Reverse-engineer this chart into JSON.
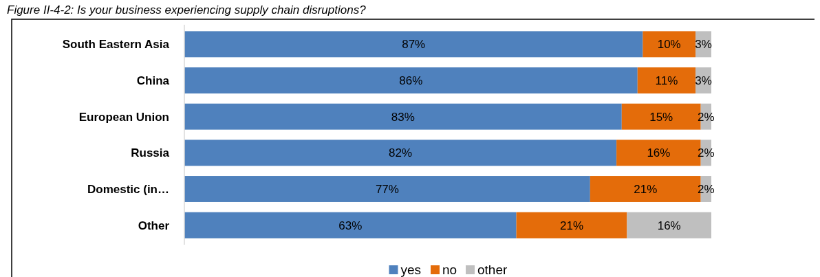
{
  "chart_data": {
    "type": "bar",
    "orientation": "horizontal",
    "stacked": true,
    "title": "Figure II-4-2: Is your business experiencing supply chain disruptions?",
    "categories": [
      "South Eastern Asia",
      "China",
      "European Union",
      "Russia",
      "Domestic (in…",
      "Other"
    ],
    "xlim": [
      0,
      100
    ],
    "legend": "bottom",
    "series": [
      {
        "name": "yes",
        "color": "#4f81bd",
        "values": [
          87,
          86,
          83,
          82,
          77,
          63
        ],
        "value_labels": [
          "87%",
          "86%",
          "83%",
          "82%",
          "77%",
          "63%"
        ]
      },
      {
        "name": "no",
        "color": "#e46c0a",
        "values": [
          10,
          11,
          15,
          16,
          21,
          21
        ],
        "value_labels": [
          "10%",
          "11%",
          "15%",
          "16%",
          "21%",
          "21%"
        ]
      },
      {
        "name": "other",
        "color": "#bfbfbf",
        "values": [
          3,
          3,
          2,
          2,
          2,
          16
        ],
        "value_labels": [
          "3%",
          "3%",
          "2%",
          "2%",
          "2%",
          "16%"
        ]
      }
    ]
  }
}
